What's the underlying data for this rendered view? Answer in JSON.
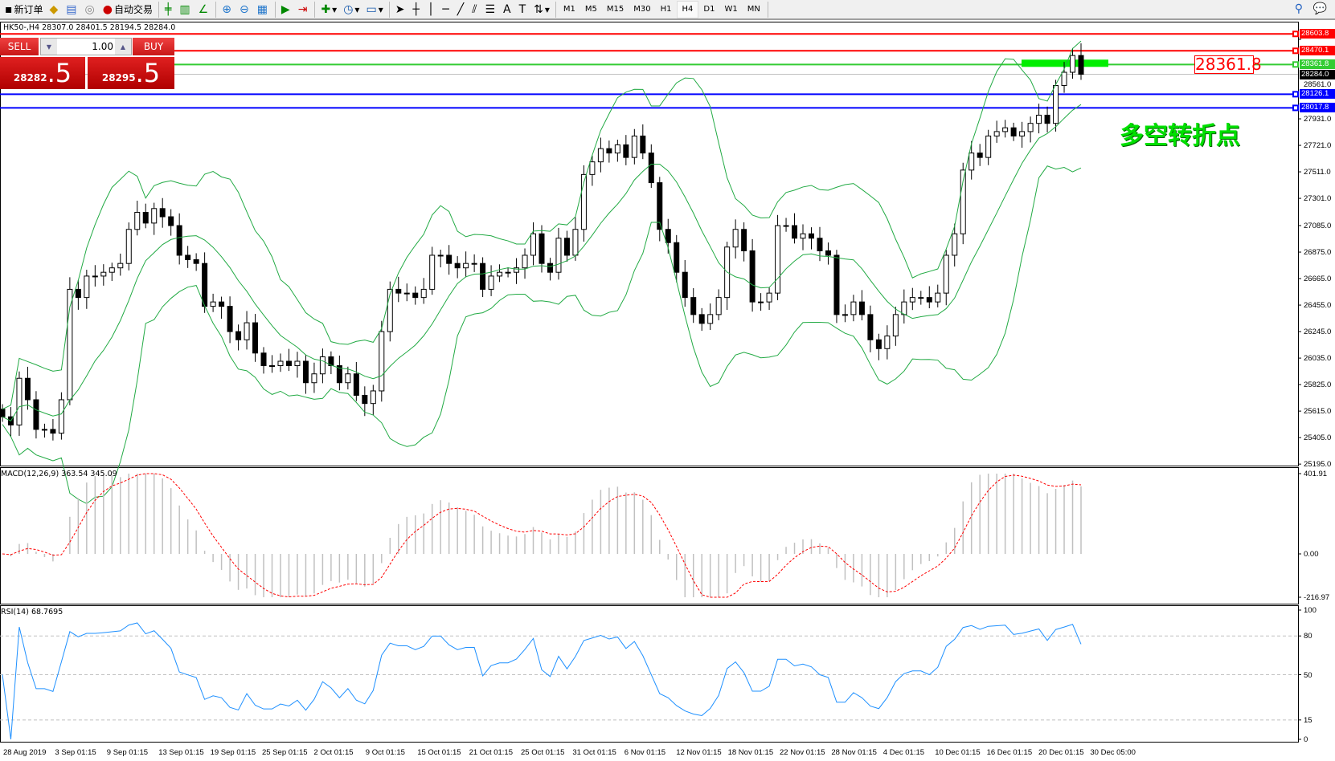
{
  "toolbar": {
    "new_order": "新订单",
    "auto_trading": "自动交易",
    "timeframes": [
      "M1",
      "M5",
      "M15",
      "M30",
      "H1",
      "H4",
      "D1",
      "W1",
      "MN"
    ],
    "active_timeframe": "H4"
  },
  "chart": {
    "title": "HK50-,H4  28307.0 28401.5 28194.5 28284.0",
    "symbol": "HK50-",
    "timeframe": "H4",
    "ohlc_current": {
      "open": 28307.0,
      "high": 28401.5,
      "low": 28194.5,
      "close": 28284.0
    }
  },
  "trade_panel": {
    "sell_label": "SELL",
    "buy_label": "BUY",
    "lot": "1.00",
    "sell_price_main": "28282",
    "sell_price_frac": ".5",
    "buy_price_main": "28295",
    "buy_price_frac": ".5"
  },
  "price_axis": {
    "ticks": [
      "28561.0",
      "27931.0",
      "27721.0",
      "27511.0",
      "27301.0",
      "27085.0",
      "26875.0",
      "26665.0",
      "26455.0",
      "26245.0",
      "26035.0",
      "25825.0",
      "25615.0",
      "25405.0",
      "25195.0"
    ],
    "range": [
      25195.0,
      28561.0
    ]
  },
  "levels": [
    {
      "value": "28603.8",
      "color": "#ff0000"
    },
    {
      "value": "28470.1",
      "color": "#ff0000"
    },
    {
      "value": "28361.8",
      "color": "#33cc33"
    },
    {
      "value": "28284.0",
      "color": "#000000"
    },
    {
      "value": "28126.1",
      "color": "#0000ff"
    },
    {
      "value": "28017.8",
      "color": "#0000ff"
    }
  ],
  "annotation": {
    "pivot_value": "28361.8",
    "pivot_text": "多空转折点",
    "color": "#00e000"
  },
  "macd": {
    "label": "MACD(12,26,9) 363.54 345.09",
    "ticks": [
      "401.91",
      "0.00",
      "-216.97"
    ],
    "range": [
      -216.97,
      401.91
    ]
  },
  "rsi": {
    "label": "RSI(14) 68.7695",
    "ticks": [
      "100",
      "80",
      "50",
      "15",
      "0"
    ]
  },
  "time_axis": [
    "28 Aug 2019",
    "3 Sep 01:15",
    "9 Sep 01:15",
    "13 Sep 01:15",
    "19 Sep 01:15",
    "25 Sep 01:15",
    "2 Oct 01:15",
    "9 Oct 01:15",
    "15 Oct 01:15",
    "21 Oct 01:15",
    "25 Oct 01:15",
    "31 Oct 01:15",
    "6 Nov 01:15",
    "12 Nov 01:15",
    "18 Nov 01:15",
    "22 Nov 01:15",
    "28 Nov 01:15",
    "4 Dec 01:15",
    "10 Dec 01:15",
    "16 Dec 01:15",
    "20 Dec 01:15",
    "30 Dec 05:00"
  ],
  "chart_data": {
    "type": "candlestick",
    "closes": [
      25570,
      25505,
      25875,
      25705,
      25470,
      25470,
      25440,
      25705,
      26580,
      26515,
      26685,
      26685,
      26715,
      26750,
      26785,
      27055,
      27190,
      27105,
      27220,
      27155,
      27085,
      26850,
      26815,
      26785,
      26445,
      26480,
      26445,
      26245,
      26180,
      26315,
      26075,
      25975,
      25975,
      26010,
      25975,
      26010,
      25840,
      25910,
      26045,
      25975,
      25840,
      25910,
      25740,
      25675,
      25775,
      26245,
      26580,
      26550,
      26550,
      26515,
      26580,
      26850,
      26850,
      26785,
      26750,
      26785,
      26785,
      26580,
      26685,
      26715,
      26715,
      26750,
      26850,
      27020,
      26785,
      26715,
      26985,
      26850,
      27055,
      27490,
      27590,
      27695,
      27660,
      27725,
      27625,
      27795,
      27660,
      27425,
      27055,
      26950,
      26715,
      26515,
      26380,
      26310,
      26380,
      26515,
      26915,
      27055,
      26885,
      26480,
      26480,
      26550,
      27085,
      27085,
      26985,
      27020,
      26985,
      26885,
      26850,
      26380,
      26380,
      26480,
      26380,
      26180,
      26110,
      26210,
      26380,
      26480,
      26515,
      26515,
      26480,
      26550,
      26850,
      27020,
      27525,
      27660,
      27625,
      27795,
      27830,
      27860,
      27795,
      27830,
      27895,
      27960,
      27895,
      28195,
      28300,
      28433,
      28284
    ],
    "bollinger_color": "#22aa44",
    "macd_signal_color": "#ff0000",
    "macd_hist_color": "#c0c0c0",
    "rsi_color": "#1e90ff"
  }
}
